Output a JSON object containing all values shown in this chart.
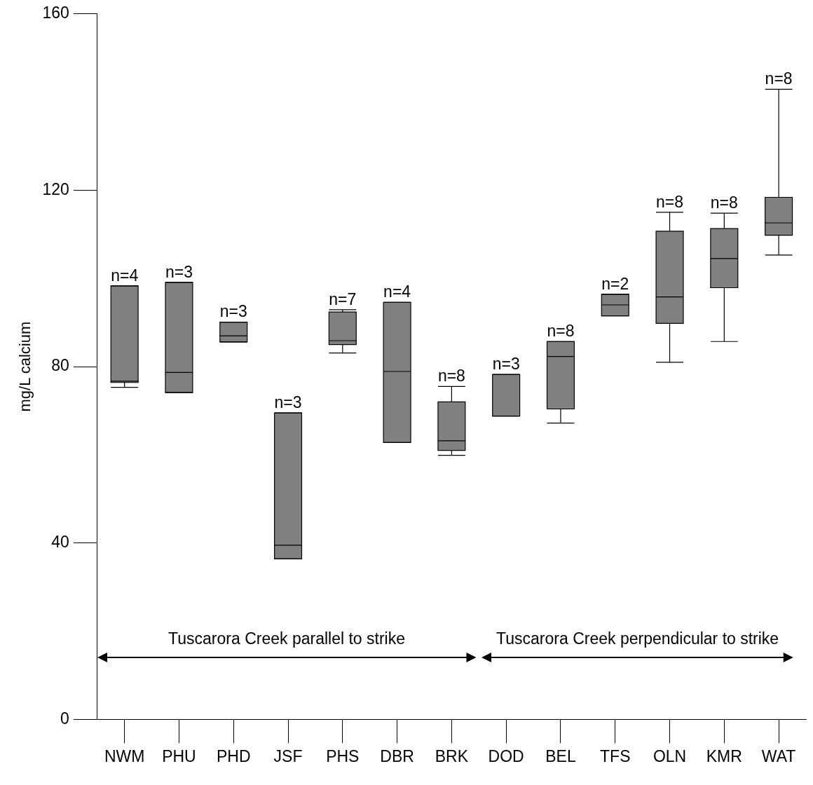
{
  "chart_data": {
    "type": "box",
    "ylabel": "mg/L calcium",
    "categories": [
      "NWM",
      "PHU",
      "PHD",
      "JSF",
      "PHS",
      "DBR",
      "BRK",
      "DOD",
      "BEL",
      "TFS",
      "OLN",
      "KMR",
      "WAT"
    ],
    "color": "#808080",
    "boxes": [
      {
        "low": 75.3,
        "q1": 76.4,
        "median": 76.7,
        "q3": 98.3,
        "high": 98.3
      },
      {
        "low": 74.1,
        "q1": 74.1,
        "median": 78.7,
        "q3": 99.1,
        "high": 99.1
      },
      {
        "low": 85.6,
        "q1": 85.6,
        "median": 87.0,
        "q3": 90.1,
        "high": 90.1
      },
      {
        "low": 36.4,
        "q1": 36.4,
        "median": 39.5,
        "q3": 69.5,
        "high": 69.5
      },
      {
        "low": 83.1,
        "q1": 85.0,
        "median": 85.9,
        "q3": 92.4,
        "high": 92.9
      },
      {
        "low": 62.8,
        "q1": 62.8,
        "median": 78.9,
        "q3": 94.6,
        "high": 94.6
      },
      {
        "low": 59.9,
        "q1": 61.0,
        "median": 63.2,
        "q3": 72.0,
        "high": 75.5
      },
      {
        "low": 68.8,
        "q1": 68.8,
        "median": 78.2,
        "q3": 78.2,
        "high": 78.2
      },
      {
        "low": 67.2,
        "q1": 70.4,
        "median": 82.3,
        "q3": 85.7,
        "high": 85.7
      },
      {
        "low": 91.5,
        "q1": 91.5,
        "median": 94.0,
        "q3": 96.4,
        "high": 96.4
      },
      {
        "low": 81.0,
        "q1": 89.8,
        "median": 95.8,
        "q3": 110.7,
        "high": 115.0
      },
      {
        "low": 85.7,
        "q1": 97.9,
        "median": 104.5,
        "q3": 111.3,
        "high": 114.8
      },
      {
        "low": 105.3,
        "q1": 109.8,
        "median": 112.6,
        "q3": 118.4,
        "high": 142.9
      }
    ],
    "ylim": [
      0,
      160
    ],
    "yticks": [
      0,
      40,
      80,
      120,
      160
    ],
    "annotations": [
      {
        "text": "n=4",
        "x": "NWM",
        "y": 98.3
      },
      {
        "text": "n=3",
        "x": "PHU",
        "y": 99.1
      },
      {
        "text": "n=3",
        "x": "PHD",
        "y": 90.1
      },
      {
        "text": "n=3",
        "x": "JSF",
        "y": 69.5
      },
      {
        "text": "n=7",
        "x": "PHS",
        "y": 92.9
      },
      {
        "text": "n=4",
        "x": "DBR",
        "y": 94.6
      },
      {
        "text": "n=8",
        "x": "BRK",
        "y": 75.5
      },
      {
        "text": "n=3",
        "x": "DOD",
        "y": 78.2
      },
      {
        "text": "n=8",
        "x": "BEL",
        "y": 85.7
      },
      {
        "text": "n=2",
        "x": "TFS",
        "y": 96.4
      },
      {
        "text": "n=8",
        "x": "OLN",
        "y": 115.0
      },
      {
        "text": "n=8",
        "x": "KMR",
        "y": 114.8
      },
      {
        "text": "n=8",
        "x": "WAT",
        "y": 142.9
      },
      "Tuscarora Creek parallel to strike",
      "Tuscarora Creek perpendicular to strike"
    ]
  }
}
